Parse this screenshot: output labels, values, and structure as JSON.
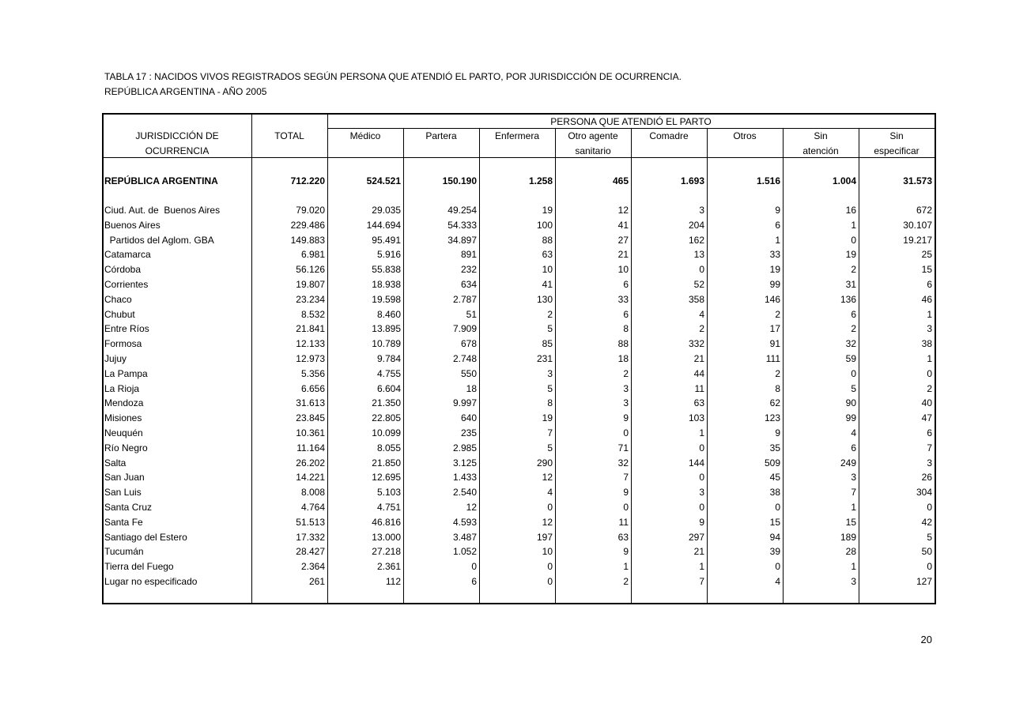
{
  "title_line1": "TABLA 17 : NACIDOS VIVOS REGISTRADOS  SEGÚN PERSONA QUE ATENDIÓ EL PARTO,  POR  JURISDICCIÓN DE OCURRENCIA.",
  "title_line2": "REPÚBLICA ARGENTINA  -  AÑO 2005",
  "header": {
    "jurisdiccion_1": "JURISDICCIÓN   DE",
    "jurisdiccion_2": "OCURRENCIA",
    "total": "TOTAL",
    "group": "PERSONA QUE ATENDIÓ EL PARTO",
    "columns": [
      [
        "Médico",
        ""
      ],
      [
        "Partera",
        ""
      ],
      [
        "Enfermera",
        ""
      ],
      [
        "Otro agente",
        "sanitario"
      ],
      [
        "Comadre",
        ""
      ],
      [
        "Otros",
        ""
      ],
      [
        "Sin",
        "atención"
      ],
      [
        "Sin",
        "especificar"
      ]
    ]
  },
  "total_row": {
    "name": "REPÚBLICA ARGENTINA",
    "values": [
      "712.220",
      "524.521",
      "150.190",
      "1.258",
      "465",
      "1.693",
      "1.516",
      "1.004",
      "31.573"
    ]
  },
  "rows": [
    {
      "name": "Ciud. Aut. de  Buenos Aires",
      "values": [
        "79.020",
        "29.035",
        "49.254",
        "19",
        "12",
        "3",
        "9",
        "16",
        "672"
      ]
    },
    {
      "name": "Buenos Aires",
      "values": [
        "229.486",
        "144.694",
        "54.333",
        "100",
        "41",
        "204",
        "6",
        "1",
        "30.107"
      ]
    },
    {
      "name": "  Partidos del Aglom. GBA",
      "values": [
        "149.883",
        "95.491",
        "34.897",
        "88",
        "27",
        "162",
        "1",
        "0",
        "19.217"
      ]
    },
    {
      "name": "Catamarca",
      "values": [
        "6.981",
        "5.916",
        "891",
        "63",
        "21",
        "13",
        "33",
        "19",
        "25"
      ]
    },
    {
      "name": "Córdoba",
      "values": [
        "56.126",
        "55.838",
        "232",
        "10",
        "10",
        "0",
        "19",
        "2",
        "15"
      ]
    },
    {
      "name": "Corrientes",
      "values": [
        "19.807",
        "18.938",
        "634",
        "41",
        "6",
        "52",
        "99",
        "31",
        "6"
      ]
    },
    {
      "name": "Chaco",
      "values": [
        "23.234",
        "19.598",
        "2.787",
        "130",
        "33",
        "358",
        "146",
        "136",
        "46"
      ]
    },
    {
      "name": "Chubut",
      "values": [
        "8.532",
        "8.460",
        "51",
        "2",
        "6",
        "4",
        "2",
        "6",
        "1"
      ]
    },
    {
      "name": "Entre Ríos",
      "values": [
        "21.841",
        "13.895",
        "7.909",
        "5",
        "8",
        "2",
        "17",
        "2",
        "3"
      ]
    },
    {
      "name": "Formosa",
      "values": [
        "12.133",
        "10.789",
        "678",
        "85",
        "88",
        "332",
        "91",
        "32",
        "38"
      ]
    },
    {
      "name": "Jujuy",
      "values": [
        "12.973",
        "9.784",
        "2.748",
        "231",
        "18",
        "21",
        "111",
        "59",
        "1"
      ]
    },
    {
      "name": "La Pampa",
      "values": [
        "5.356",
        "4.755",
        "550",
        "3",
        "2",
        "44",
        "2",
        "0",
        "0"
      ]
    },
    {
      "name": "La Rioja",
      "values": [
        "6.656",
        "6.604",
        "18",
        "5",
        "3",
        "11",
        "8",
        "5",
        "2"
      ]
    },
    {
      "name": "Mendoza",
      "values": [
        "31.613",
        "21.350",
        "9.997",
        "8",
        "3",
        "63",
        "62",
        "90",
        "40"
      ]
    },
    {
      "name": "Misiones",
      "values": [
        "23.845",
        "22.805",
        "640",
        "19",
        "9",
        "103",
        "123",
        "99",
        "47"
      ]
    },
    {
      "name": "Neuquén",
      "values": [
        "10.361",
        "10.099",
        "235",
        "7",
        "0",
        "1",
        "9",
        "4",
        "6"
      ]
    },
    {
      "name": "Río Negro",
      "values": [
        "11.164",
        "8.055",
        "2.985",
        "5",
        "71",
        "0",
        "35",
        "6",
        "7"
      ]
    },
    {
      "name": "Salta",
      "values": [
        "26.202",
        "21.850",
        "3.125",
        "290",
        "32",
        "144",
        "509",
        "249",
        "3"
      ]
    },
    {
      "name": "San Juan",
      "values": [
        "14.221",
        "12.695",
        "1.433",
        "12",
        "7",
        "0",
        "45",
        "3",
        "26"
      ]
    },
    {
      "name": "San Luis",
      "values": [
        "8.008",
        "5.103",
        "2.540",
        "4",
        "9",
        "3",
        "38",
        "7",
        "304"
      ]
    },
    {
      "name": "Santa Cruz",
      "values": [
        "4.764",
        "4.751",
        "12",
        "0",
        "0",
        "0",
        "0",
        "1",
        "0"
      ]
    },
    {
      "name": "Santa Fe",
      "values": [
        "51.513",
        "46.816",
        "4.593",
        "12",
        "11",
        "9",
        "15",
        "15",
        "42"
      ]
    },
    {
      "name": "Santiago del Estero",
      "values": [
        "17.332",
        "13.000",
        "3.487",
        "197",
        "63",
        "297",
        "94",
        "189",
        "5"
      ]
    },
    {
      "name": "Tucumán",
      "values": [
        "28.427",
        "27.218",
        "1.052",
        "10",
        "9",
        "21",
        "39",
        "28",
        "50"
      ]
    },
    {
      "name": "Tierra del Fuego",
      "values": [
        "2.364",
        "2.361",
        "0",
        "0",
        "1",
        "1",
        "0",
        "1",
        "0"
      ]
    },
    {
      "name": "Lugar no especificado",
      "values": [
        "261",
        "112",
        "6",
        "0",
        "2",
        "7",
        "4",
        "3",
        "127"
      ]
    }
  ],
  "page_number": "20"
}
